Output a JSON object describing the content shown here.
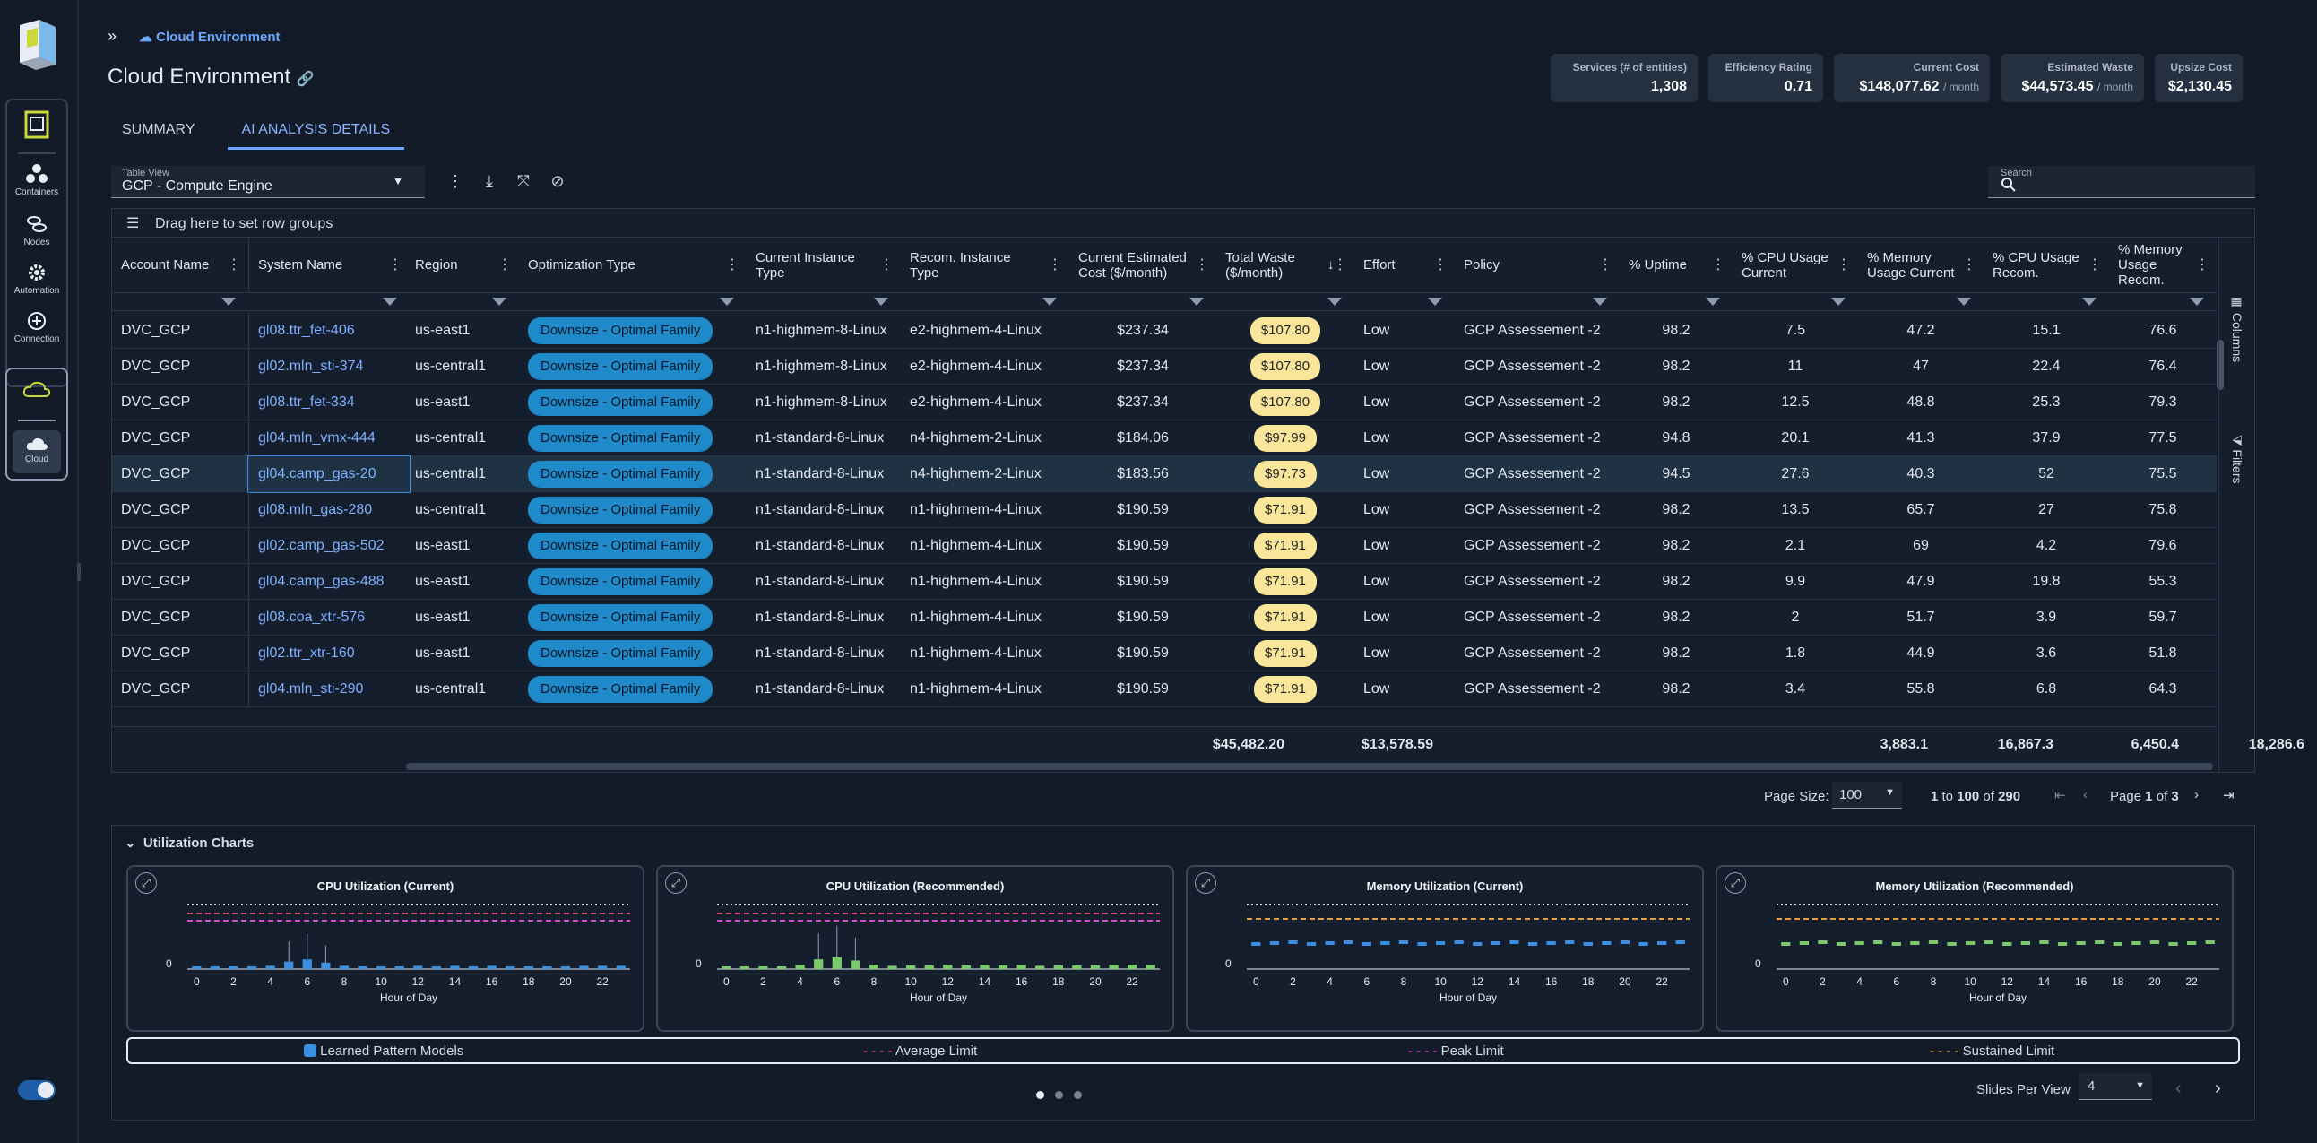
{
  "nav": {
    "items": [
      {
        "label": "Containers"
      },
      {
        "label": "Nodes"
      },
      {
        "label": "Automation"
      },
      {
        "label": "Connection"
      },
      {
        "label": "Cloud"
      }
    ]
  },
  "breadcrumb": "Cloud Environment",
  "page_title": "Cloud Environment",
  "kpis": [
    {
      "label": "Services (# of entities)",
      "value": "1,308",
      "unit": ""
    },
    {
      "label": "Efficiency Rating",
      "value": "0.71",
      "unit": ""
    },
    {
      "label": "Current Cost",
      "value": "$148,077.62",
      "unit": "/ month"
    },
    {
      "label": "Estimated Waste",
      "value": "$44,573.45",
      "unit": "/ month"
    },
    {
      "label": "Upsize Cost",
      "value": "$2,130.45",
      "unit": ""
    }
  ],
  "tabs": [
    "SUMMARY",
    "AI ANALYSIS DETAILS"
  ],
  "table_view": {
    "label": "Table View",
    "value": "GCP - Compute Engine"
  },
  "search": {
    "label": "Search"
  },
  "group_bar": "Drag here to set row groups",
  "columns": [
    "Account Name",
    "System Name",
    "Region",
    "Optimization Type",
    "Current Instance Type",
    "Recom. Instance Type",
    "Current Estimated Cost ($/month)",
    "Total Waste ($/month)",
    "Effort",
    "Policy",
    "% Uptime",
    "% CPU Usage Current",
    "% Memory Usage Current",
    "% CPU Usage Recom.",
    "% Memory Usage Recom."
  ],
  "rows": [
    [
      "DVC_GCP",
      "gl08.ttr_fet-406",
      "us-east1",
      "Downsize - Optimal Family",
      "n1-highmem-8-Linux",
      "e2-highmem-4-Linux",
      "$237.34",
      "$107.80",
      "Low",
      "GCP Assessement -2",
      "98.2",
      "7.5",
      "47.2",
      "15.1",
      "76.6"
    ],
    [
      "DVC_GCP",
      "gl02.mln_sti-374",
      "us-central1",
      "Downsize - Optimal Family",
      "n1-highmem-8-Linux",
      "e2-highmem-4-Linux",
      "$237.34",
      "$107.80",
      "Low",
      "GCP Assessement -2",
      "98.2",
      "11",
      "47",
      "22.4",
      "76.4"
    ],
    [
      "DVC_GCP",
      "gl08.ttr_fet-334",
      "us-east1",
      "Downsize - Optimal Family",
      "n1-highmem-8-Linux",
      "e2-highmem-4-Linux",
      "$237.34",
      "$107.80",
      "Low",
      "GCP Assessement -2",
      "98.2",
      "12.5",
      "48.8",
      "25.3",
      "79.3"
    ],
    [
      "DVC_GCP",
      "gl04.mln_vmx-444",
      "us-central1",
      "Downsize - Optimal Family",
      "n1-standard-8-Linux",
      "n4-highmem-2-Linux",
      "$184.06",
      "$97.99",
      "Low",
      "GCP Assessement -2",
      "94.8",
      "20.1",
      "41.3",
      "37.9",
      "77.5"
    ],
    [
      "DVC_GCP",
      "gl04.camp_gas-20",
      "us-central1",
      "Downsize - Optimal Family",
      "n1-standard-8-Linux",
      "n4-highmem-2-Linux",
      "$183.56",
      "$97.73",
      "Low",
      "GCP Assessement -2",
      "94.5",
      "27.6",
      "40.3",
      "52",
      "75.5"
    ],
    [
      "DVC_GCP",
      "gl08.mln_gas-280",
      "us-central1",
      "Downsize - Optimal Family",
      "n1-standard-8-Linux",
      "n1-highmem-4-Linux",
      "$190.59",
      "$71.91",
      "Low",
      "GCP Assessement -2",
      "98.2",
      "13.5",
      "65.7",
      "27",
      "75.8"
    ],
    [
      "DVC_GCP",
      "gl02.camp_gas-502",
      "us-east1",
      "Downsize - Optimal Family",
      "n1-standard-8-Linux",
      "n1-highmem-4-Linux",
      "$190.59",
      "$71.91",
      "Low",
      "GCP Assessement -2",
      "98.2",
      "2.1",
      "69",
      "4.2",
      "79.6"
    ],
    [
      "DVC_GCP",
      "gl04.camp_gas-488",
      "us-east1",
      "Downsize - Optimal Family",
      "n1-standard-8-Linux",
      "n1-highmem-4-Linux",
      "$190.59",
      "$71.91",
      "Low",
      "GCP Assessement -2",
      "98.2",
      "9.9",
      "47.9",
      "19.8",
      "55.3"
    ],
    [
      "DVC_GCP",
      "gl08.coa_xtr-576",
      "us-east1",
      "Downsize - Optimal Family",
      "n1-standard-8-Linux",
      "n1-highmem-4-Linux",
      "$190.59",
      "$71.91",
      "Low",
      "GCP Assessement -2",
      "98.2",
      "2",
      "51.7",
      "3.9",
      "59.7"
    ],
    [
      "DVC_GCP",
      "gl02.ttr_xtr-160",
      "us-east1",
      "Downsize - Optimal Family",
      "n1-standard-8-Linux",
      "n1-highmem-4-Linux",
      "$190.59",
      "$71.91",
      "Low",
      "GCP Assessement -2",
      "98.2",
      "1.8",
      "44.9",
      "3.6",
      "51.8"
    ],
    [
      "DVC_GCP",
      "gl04.mln_sti-290",
      "us-central1",
      "Downsize - Optimal Family",
      "n1-standard-8-Linux",
      "n1-highmem-4-Linux",
      "$190.59",
      "$71.91",
      "Low",
      "GCP Assessement -2",
      "98.2",
      "3.4",
      "55.8",
      "6.8",
      "64.3"
    ]
  ],
  "totals": {
    "cost": "$45,482.20",
    "waste": "$13,578.59",
    "cpu_cur": "3,883.1",
    "mem_cur": "16,867.3",
    "cpu_rec": "6,450.4",
    "mem_rec": "18,286.6"
  },
  "side_tabs": {
    "columns": "Columns",
    "filters": "Filters"
  },
  "pager": {
    "page_size_label": "Page Size:",
    "page_size": "100",
    "range_from": "1",
    "range_to": "100",
    "range_total": "290",
    "page_label": "Page",
    "page": "1",
    "page_of": "3"
  },
  "charts_section": {
    "title": "Utilization Charts",
    "slides_label": "Slides Per View",
    "slides_value": "4"
  },
  "chart_data": [
    {
      "type": "bar",
      "title": "CPU Utilization (Current)",
      "xlabel": "Hour of Day",
      "x": [
        0,
        2,
        4,
        6,
        8,
        10,
        12,
        14,
        16,
        18,
        20,
        22
      ],
      "ytick": "0",
      "series": [
        {
          "name": "Learned Pattern Models",
          "color": "#3b8fe0"
        }
      ],
      "limits": [
        "Average Limit",
        "Peak Limit"
      ]
    },
    {
      "type": "bar",
      "title": "CPU Utilization (Recommended)",
      "xlabel": "Hour of Day",
      "x": [
        0,
        2,
        4,
        6,
        8,
        10,
        12,
        14,
        16,
        18,
        20,
        22
      ],
      "ytick": "0",
      "series": [
        {
          "name": "Learned Pattern Models",
          "color": "#7ac96b"
        }
      ],
      "limits": [
        "Average Limit",
        "Peak Limit"
      ]
    },
    {
      "type": "bar",
      "title": "Memory Utilization (Current)",
      "xlabel": "Hour of Day",
      "x": [
        0,
        2,
        4,
        6,
        8,
        10,
        12,
        14,
        16,
        18,
        20,
        22
      ],
      "ytick": "0",
      "series": [
        {
          "name": "Learned Pattern Models",
          "color": "#3b8fe0"
        }
      ],
      "limits": [
        "Sustained Limit"
      ]
    },
    {
      "type": "bar",
      "title": "Memory Utilization (Recommended)",
      "xlabel": "Hour of Day",
      "x": [
        0,
        2,
        4,
        6,
        8,
        10,
        12,
        14,
        16,
        18,
        20,
        22
      ],
      "ytick": "0",
      "series": [
        {
          "name": "Learned Pattern Models",
          "color": "#7ac96b"
        }
      ],
      "limits": [
        "Sustained Limit"
      ]
    }
  ],
  "legend": {
    "learned": "Learned Pattern Models",
    "average": "Average Limit",
    "peak": "Peak Limit",
    "sustained": "Sustained Limit"
  },
  "colors": {
    "accent": "#6aa7ff",
    "pill": "#1e8ac9",
    "waste": "#f9e69a",
    "average": "#e0436b",
    "peak": "#d94bd1",
    "sustained": "#e8a03a"
  }
}
